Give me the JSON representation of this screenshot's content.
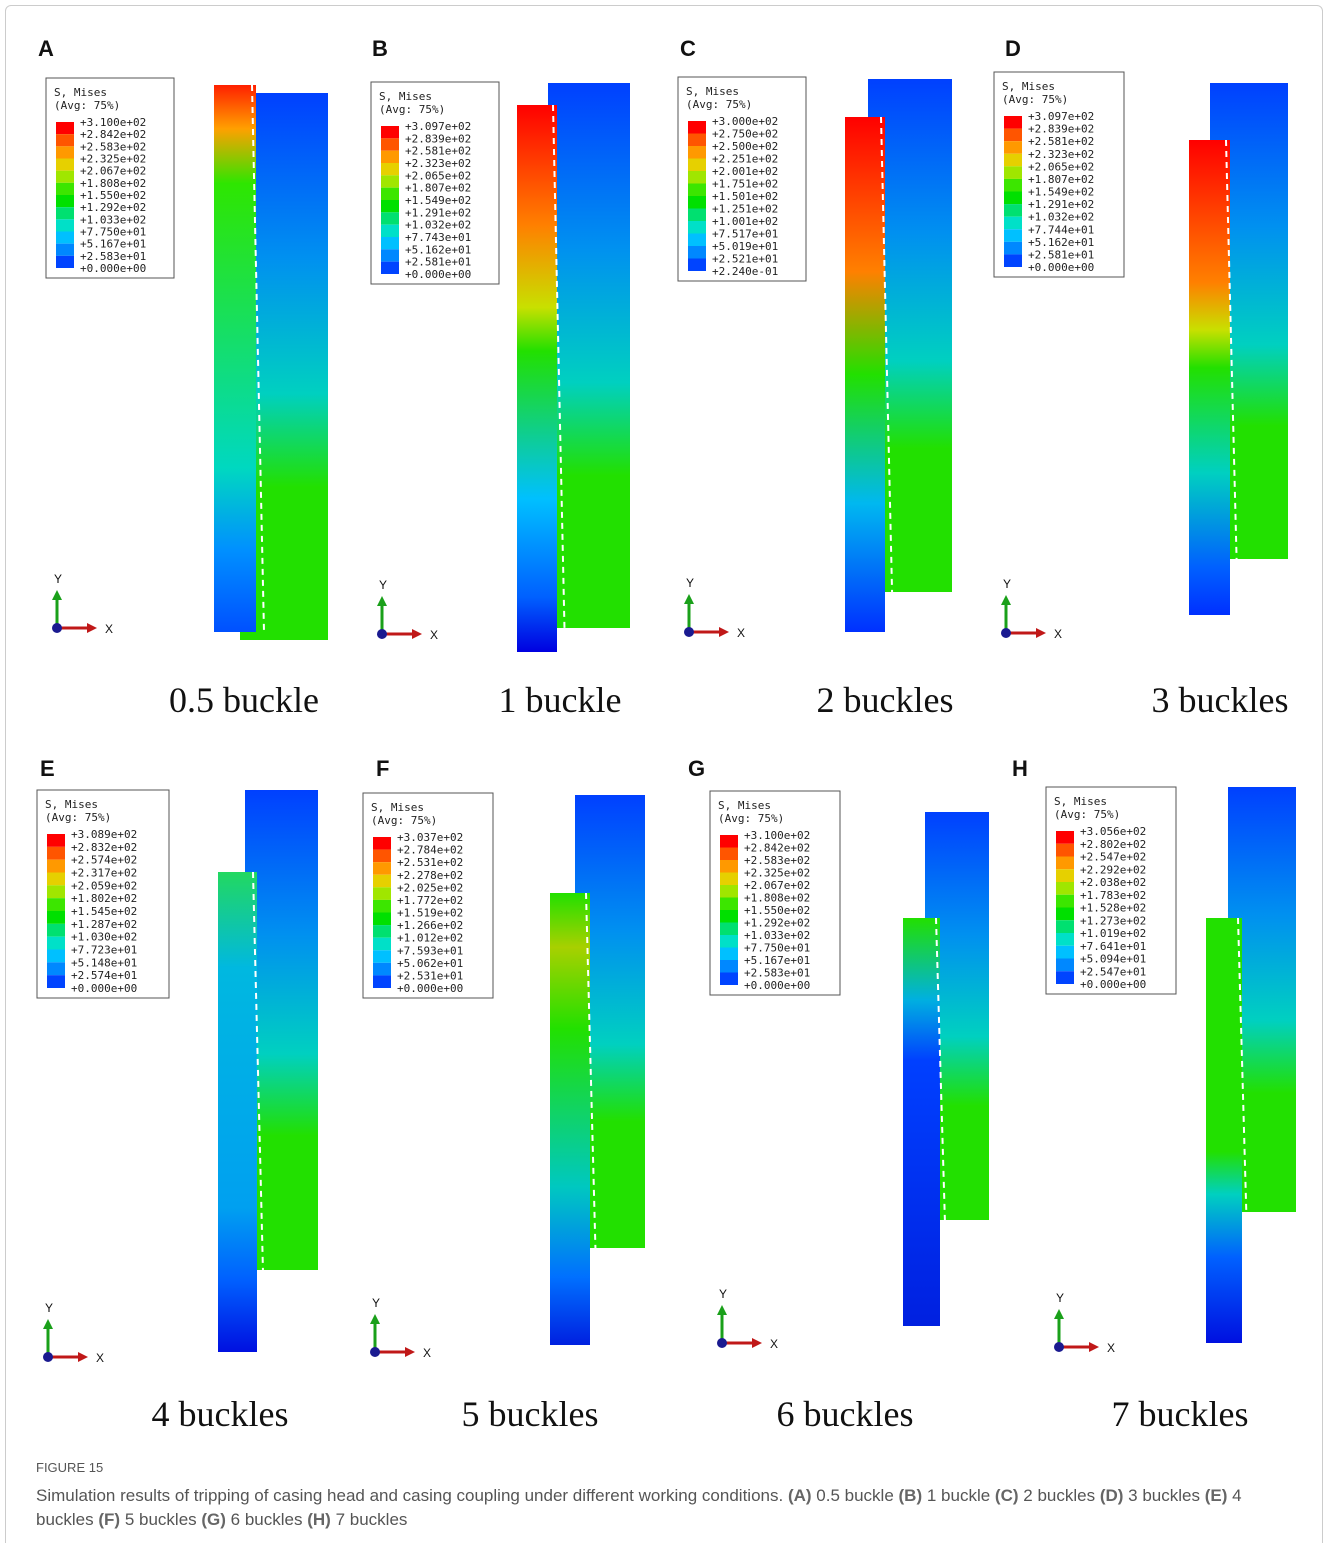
{
  "figure": {
    "panels": [
      {
        "letter": "A",
        "legend_title": "S, Mises",
        "legend_avg": "(Avg: 75%)",
        "legend_values": [
          "+3.100e+02",
          "+2.842e+02",
          "+2.583e+02",
          "+2.325e+02",
          "+2.067e+02",
          "+1.808e+02",
          "+1.550e+02",
          "+1.292e+02",
          "+1.033e+02",
          "+7.750e+01",
          "+5.167e+01",
          "+2.583e+01",
          "+0.000e+00"
        ],
        "axis_y": "Y",
        "axis_x": "X",
        "caption": "0.5 buckle"
      },
      {
        "letter": "B",
        "legend_title": "S, Mises",
        "legend_avg": "(Avg: 75%)",
        "legend_values": [
          "+3.097e+02",
          "+2.839e+02",
          "+2.581e+02",
          "+2.323e+02",
          "+2.065e+02",
          "+1.807e+02",
          "+1.549e+02",
          "+1.291e+02",
          "+1.032e+02",
          "+7.743e+01",
          "+5.162e+01",
          "+2.581e+01",
          "+0.000e+00"
        ],
        "axis_y": "Y",
        "axis_x": "X",
        "caption": "1 buckle"
      },
      {
        "letter": "C",
        "legend_title": "S, Mises",
        "legend_avg": "(Avg: 75%)",
        "legend_values": [
          "+3.000e+02",
          "+2.750e+02",
          "+2.500e+02",
          "+2.251e+02",
          "+2.001e+02",
          "+1.751e+02",
          "+1.501e+02",
          "+1.251e+02",
          "+1.001e+02",
          "+7.517e+01",
          "+5.019e+01",
          "+2.521e+01",
          "+2.240e-01"
        ],
        "axis_y": "Y",
        "axis_x": "X",
        "caption": "2 buckles"
      },
      {
        "letter": "D",
        "legend_title": "S, Mises",
        "legend_avg": "(Avg: 75%)",
        "legend_values": [
          "+3.097e+02",
          "+2.839e+02",
          "+2.581e+02",
          "+2.323e+02",
          "+2.065e+02",
          "+1.807e+02",
          "+1.549e+02",
          "+1.291e+02",
          "+1.032e+02",
          "+7.744e+01",
          "+5.162e+01",
          "+2.581e+01",
          "+0.000e+00"
        ],
        "axis_y": "Y",
        "axis_x": "X",
        "caption": "3 buckles"
      },
      {
        "letter": "E",
        "legend_title": "S, Mises",
        "legend_avg": "(Avg: 75%)",
        "legend_values": [
          "+3.089e+02",
          "+2.832e+02",
          "+2.574e+02",
          "+2.317e+02",
          "+2.059e+02",
          "+1.802e+02",
          "+1.545e+02",
          "+1.287e+02",
          "+1.030e+02",
          "+7.723e+01",
          "+5.148e+01",
          "+2.574e+01",
          "+0.000e+00"
        ],
        "axis_y": "Y",
        "axis_x": "X",
        "caption": "4 buckles"
      },
      {
        "letter": "F",
        "legend_title": "S, Mises",
        "legend_avg": "(Avg: 75%)",
        "legend_values": [
          "+3.037e+02",
          "+2.784e+02",
          "+2.531e+02",
          "+2.278e+02",
          "+2.025e+02",
          "+1.772e+02",
          "+1.519e+02",
          "+1.266e+02",
          "+1.012e+02",
          "+7.593e+01",
          "+5.062e+01",
          "+2.531e+01",
          "+0.000e+00"
        ],
        "axis_y": "Y",
        "axis_x": "X",
        "caption": "5 buckles"
      },
      {
        "letter": "G",
        "legend_title": "S, Mises",
        "legend_avg": "(Avg: 75%)",
        "legend_values": [
          "+3.100e+02",
          "+2.842e+02",
          "+2.583e+02",
          "+2.325e+02",
          "+2.067e+02",
          "+1.808e+02",
          "+1.550e+02",
          "+1.292e+02",
          "+1.033e+02",
          "+7.750e+01",
          "+5.167e+01",
          "+2.583e+01",
          "+0.000e+00"
        ],
        "axis_y": "Y",
        "axis_x": "X",
        "caption": "6 buckles"
      },
      {
        "letter": "H",
        "legend_title": "S, Mises",
        "legend_avg": "(Avg: 75%)",
        "legend_values": [
          "+3.056e+02",
          "+2.802e+02",
          "+2.547e+02",
          "+2.292e+02",
          "+2.038e+02",
          "+1.783e+02",
          "+1.528e+02",
          "+1.273e+02",
          "+1.019e+02",
          "+7.641e+01",
          "+5.094e+01",
          "+2.547e+01",
          "+0.000e+00"
        ],
        "axis_y": "Y",
        "axis_x": "X",
        "caption": "7 buckles"
      }
    ],
    "label": "FIGURE 15",
    "caption": {
      "intro": "Simulation results of tripping of casing head and casing coupling under different working conditions.",
      "items": [
        {
          "letter": "(A)",
          "text": "0.5 buckle"
        },
        {
          "letter": "(B)",
          "text": "1 buckle"
        },
        {
          "letter": "(C)",
          "text": "2 buckles"
        },
        {
          "letter": "(D)",
          "text": "3 buckles"
        },
        {
          "letter": "(E)",
          "text": "4 buckles"
        },
        {
          "letter": "(F)",
          "text": "5 buckles"
        },
        {
          "letter": "(G)",
          "text": "6 buckles"
        },
        {
          "letter": "(H)",
          "text": "7 buckles"
        }
      ]
    }
  }
}
